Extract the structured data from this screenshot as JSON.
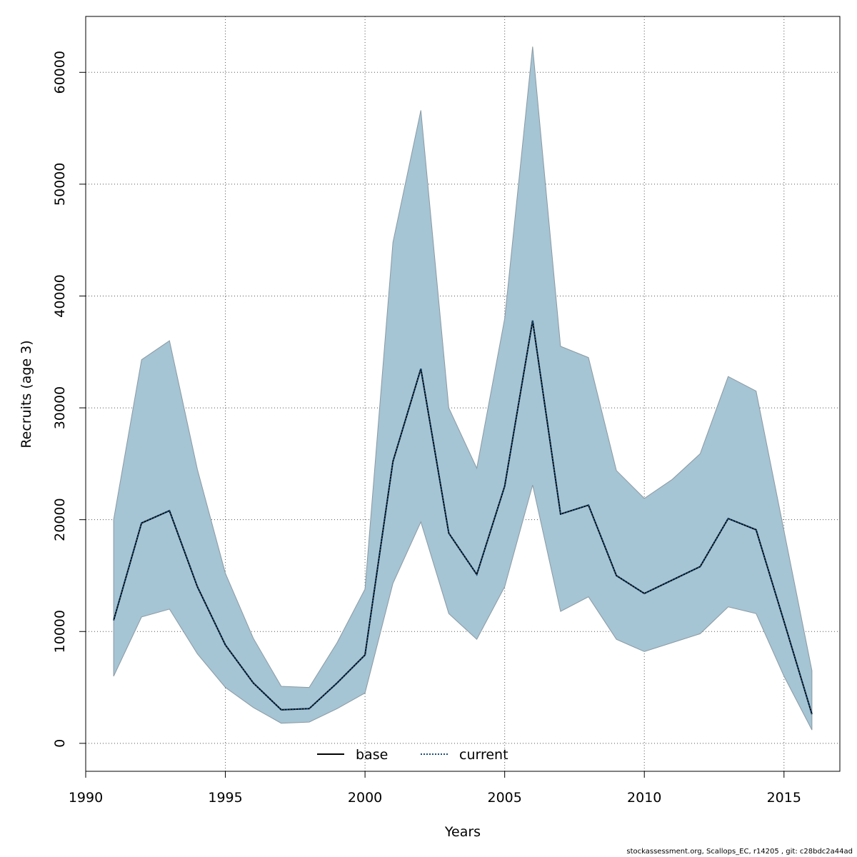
{
  "chart_data": {
    "type": "area",
    "xlabel": "Years",
    "ylabel": "Recruits (age 3)",
    "xlim": [
      1990,
      2017
    ],
    "ylim": [
      -2500,
      65000
    ],
    "x_ticks": [
      1990,
      1995,
      2000,
      2005,
      2010,
      2015
    ],
    "y_ticks": [
      0,
      10000,
      20000,
      30000,
      40000,
      50000,
      60000
    ],
    "x_tick_labels": [
      "1990",
      "1995",
      "2000",
      "2005",
      "2010",
      "2015"
    ],
    "y_tick_labels": [
      "0",
      "10000",
      "20000",
      "30000",
      "40000",
      "50000",
      "60000"
    ],
    "grid": true,
    "legend": {
      "placement": "bottom-center",
      "entries": [
        {
          "label": "base",
          "style": "solid",
          "color": "#000000"
        },
        {
          "label": "current",
          "style": "dotted",
          "color": "#1a4f7a"
        }
      ]
    },
    "x": [
      1991,
      1992,
      1993,
      1994,
      1995,
      1996,
      1997,
      1998,
      1999,
      2000,
      2001,
      2002,
      2003,
      2004,
      2005,
      2006,
      2007,
      2008,
      2009,
      2010,
      2011,
      2012,
      2013,
      2014,
      2015,
      2016
    ],
    "band": {
      "color": "#a5c4d4",
      "upper": [
        20000,
        34300,
        36000,
        24500,
        15200,
        9400,
        5100,
        5000,
        9000,
        13800,
        44800,
        56600,
        30000,
        24600,
        38000,
        62300,
        35500,
        34500,
        24400,
        21900,
        23600,
        25900,
        32800,
        31500,
        19000,
        6500
      ],
      "lower": [
        6000,
        11300,
        12000,
        8000,
        5000,
        3200,
        1800,
        1900,
        3100,
        4500,
        14300,
        19800,
        11600,
        9300,
        14000,
        23100,
        11800,
        13100,
        9300,
        8200,
        9000,
        9800,
        12200,
        11600,
        6000,
        1200
      ]
    },
    "series": [
      {
        "name": "base",
        "style": "solid",
        "color": "#000000",
        "values": [
          11000,
          19700,
          20800,
          14000,
          8800,
          5400,
          3000,
          3100,
          5400,
          7900,
          25200,
          33500,
          18800,
          15100,
          23000,
          37800,
          20500,
          21300,
          15000,
          13400,
          14600,
          15800,
          20100,
          19100,
          10900,
          2600
        ]
      },
      {
        "name": "current",
        "style": "dotted",
        "color": "#1a4f7a",
        "values": [
          11000,
          19700,
          20800,
          14000,
          8800,
          5400,
          3000,
          3100,
          5400,
          7900,
          25200,
          33500,
          18800,
          15100,
          23000,
          37800,
          20500,
          21300,
          15000,
          13400,
          14600,
          15800,
          20100,
          19100,
          10900,
          2600
        ]
      }
    ]
  },
  "footer": "stockassessment.org, Scallops_EC, r14205 , git: c28bdc2a44ad"
}
